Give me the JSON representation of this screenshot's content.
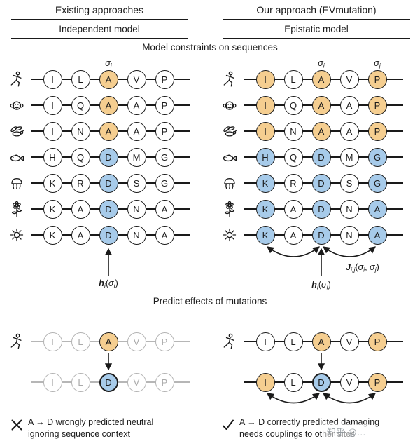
{
  "palette": {
    "orange": "#F5CE90",
    "blue": "#A7CBEA",
    "ink": "#1a1a1a",
    "muted_line": "#b6b6b6"
  },
  "header": {
    "left": {
      "title": "Existing approaches",
      "subtitle": "Independent model"
    },
    "right": {
      "title": "Our approach (EVmutation)",
      "subtitle": "Epistatic model"
    }
  },
  "model_section": {
    "title": "Model constraints on sequences",
    "rows": [
      {
        "organism": "human",
        "letters": [
          "I",
          "L",
          "A",
          "V",
          "P"
        ],
        "left": [
          "w",
          "w",
          "o",
          "w",
          "w"
        ],
        "right": [
          "o",
          "w",
          "o",
          "w",
          "o"
        ]
      },
      {
        "organism": "monkey",
        "letters": [
          "I",
          "Q",
          "A",
          "A",
          "P"
        ],
        "left": [
          "w",
          "w",
          "o",
          "w",
          "w"
        ],
        "right": [
          "o",
          "w",
          "o",
          "w",
          "o"
        ]
      },
      {
        "organism": "fly",
        "letters": [
          "I",
          "N",
          "A",
          "A",
          "P"
        ],
        "left": [
          "w",
          "w",
          "o",
          "w",
          "w"
        ],
        "right": [
          "o",
          "w",
          "o",
          "w",
          "o"
        ]
      },
      {
        "organism": "fish",
        "letters": [
          "H",
          "Q",
          "D",
          "M",
          "G"
        ],
        "left": [
          "w",
          "w",
          "b",
          "w",
          "w"
        ],
        "right": [
          "b",
          "w",
          "b",
          "w",
          "b"
        ]
      },
      {
        "organism": "jellyfish",
        "letters": [
          "K",
          "R",
          "D",
          "S",
          "G"
        ],
        "left": [
          "w",
          "w",
          "b",
          "w",
          "w"
        ],
        "right": [
          "b",
          "w",
          "b",
          "w",
          "b"
        ]
      },
      {
        "organism": "plant",
        "letters": [
          "K",
          "A",
          "D",
          "N",
          "A"
        ],
        "left": [
          "w",
          "w",
          "b",
          "w",
          "w"
        ],
        "right": [
          "b",
          "w",
          "b",
          "w",
          "b"
        ]
      },
      {
        "organism": "sun",
        "letters": [
          "K",
          "A",
          "D",
          "N",
          "A"
        ],
        "left": [
          "w",
          "w",
          "b",
          "w",
          "w"
        ],
        "right": [
          "b",
          "w",
          "b",
          "w",
          "b"
        ]
      }
    ],
    "labels": {
      "sigma_i": [
        {
          "t": "σ",
          "i": true
        },
        {
          "t": "i",
          "sub": true,
          "i": true
        }
      ],
      "sigma_j": [
        {
          "t": "σ",
          "i": true
        },
        {
          "t": "j",
          "sub": true,
          "i": true
        }
      ],
      "h": [
        {
          "t": "h",
          "b": true,
          "i": true
        },
        {
          "t": "i",
          "sub": true,
          "i": true
        },
        {
          "t": "("
        },
        {
          "t": "σ",
          "i": true
        },
        {
          "t": "i",
          "sub": true,
          "i": true
        },
        {
          "t": ")"
        }
      ],
      "J": [
        {
          "t": "J",
          "b": true,
          "i": true
        },
        {
          "t": "i,j",
          "sub": true,
          "i": true
        },
        {
          "t": "("
        },
        {
          "t": "σ",
          "i": true
        },
        {
          "t": "i",
          "sub": true,
          "i": true
        },
        {
          "t": ", "
        },
        {
          "t": "σ",
          "i": true
        },
        {
          "t": "j",
          "sub": true,
          "i": true
        },
        {
          "t": ")"
        }
      ]
    }
  },
  "predict_section": {
    "title": "Predict effects of mutations",
    "left": {
      "rows": [
        {
          "organism": "human",
          "letters": [
            "I",
            "L",
            "A",
            "V",
            "P"
          ],
          "colors": [
            "g",
            "g",
            "o",
            "g",
            "g"
          ],
          "muted_line": true
        },
        {
          "letters": [
            "I",
            "L",
            "D",
            "V",
            "P"
          ],
          "colors": [
            "g",
            "g",
            "b",
            "g",
            "g"
          ],
          "muted_line": true,
          "thick": 2
        }
      ],
      "mark": "x",
      "line1": "A → D wrongly predicted neutral",
      "line2": "ignoring sequence context"
    },
    "right": {
      "rows": [
        {
          "organism": "human",
          "letters": [
            "I",
            "L",
            "A",
            "V",
            "P"
          ],
          "colors": [
            "w",
            "w",
            "o",
            "w",
            "o"
          ]
        },
        {
          "letters": [
            "I",
            "L",
            "D",
            "V",
            "P"
          ],
          "colors": [
            "o",
            "w",
            "b",
            "w",
            "o"
          ],
          "thick": 2
        }
      ],
      "mark": "check",
      "line1": "A → D correctly predicted damaging",
      "line2": "needs couplings to other sites"
    }
  },
  "watermark": "知乎 @…"
}
